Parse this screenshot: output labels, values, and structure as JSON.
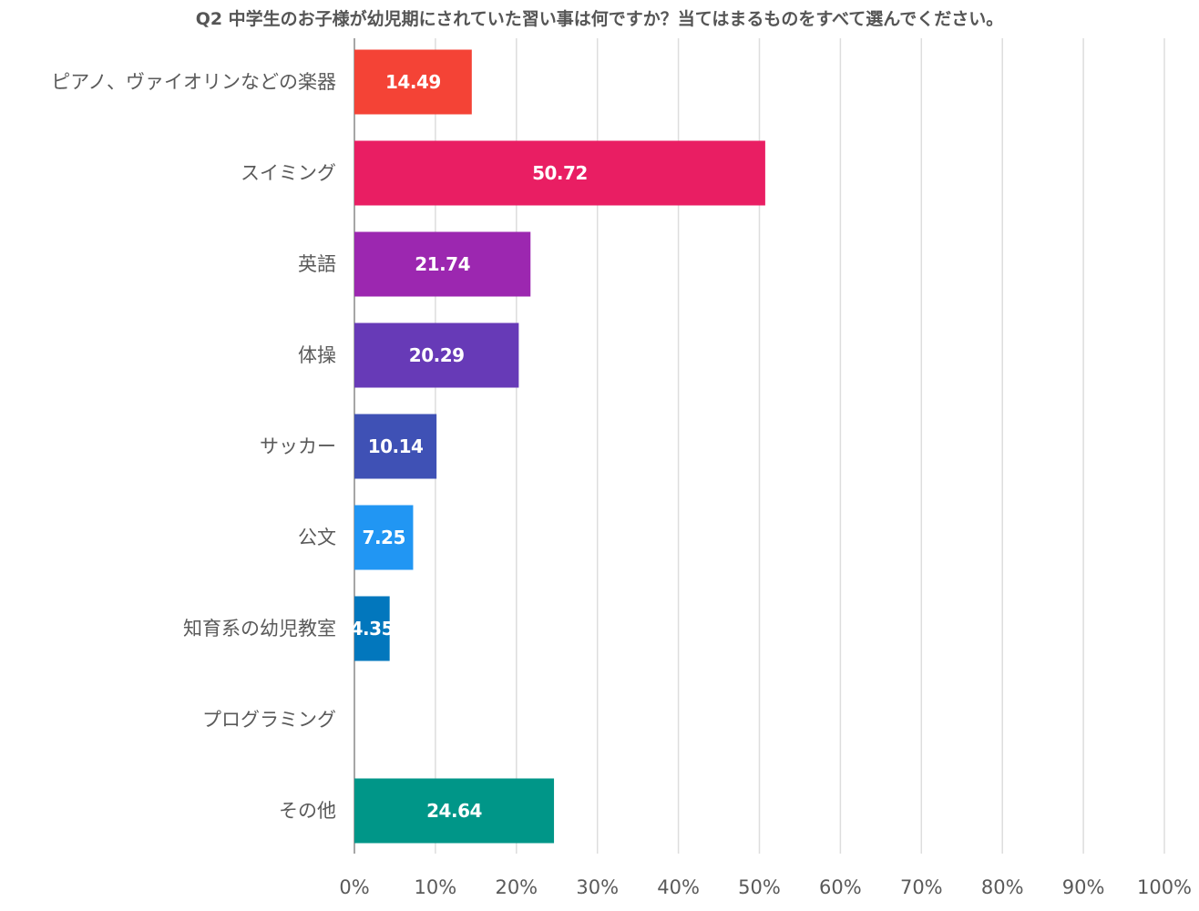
{
  "chart_data": {
    "type": "bar",
    "orientation": "horizontal",
    "title": "Q2 中学生のお子様が幼児期にされていた習い事は何ですか？当てはまるものをすべて選んでください。",
    "xlabel": "",
    "ylabel": "",
    "xlim": [
      0,
      100
    ],
    "grid": true,
    "categories": [
      "ピアノ、ヴァイオリンなどの楽器",
      "スイミング",
      "英語",
      "体操",
      "サッカー",
      "公文",
      "知育系の幼児教室",
      "プログラミング",
      "その他"
    ],
    "values": [
      14.49,
      50.72,
      21.74,
      20.29,
      10.14,
      7.25,
      4.35,
      0,
      24.64
    ],
    "data_labels": [
      "14.49",
      "50.72",
      "21.74",
      "20.29",
      "10.14",
      "7.25",
      "4.35",
      "",
      "24.64"
    ],
    "colors": [
      "#f44336",
      "#e91e63",
      "#9c27b0",
      "#673ab7",
      "#3f51b5",
      "#2196f3",
      "#0277bd",
      "#00acc1",
      "#009688"
    ],
    "ticks": [
      0,
      10,
      20,
      30,
      40,
      50,
      60,
      70,
      80,
      90,
      100
    ],
    "tick_labels": [
      "0%",
      "10%",
      "20%",
      "30%",
      "40%",
      "50%",
      "60%",
      "70%",
      "80%",
      "90%",
      "100%"
    ]
  }
}
